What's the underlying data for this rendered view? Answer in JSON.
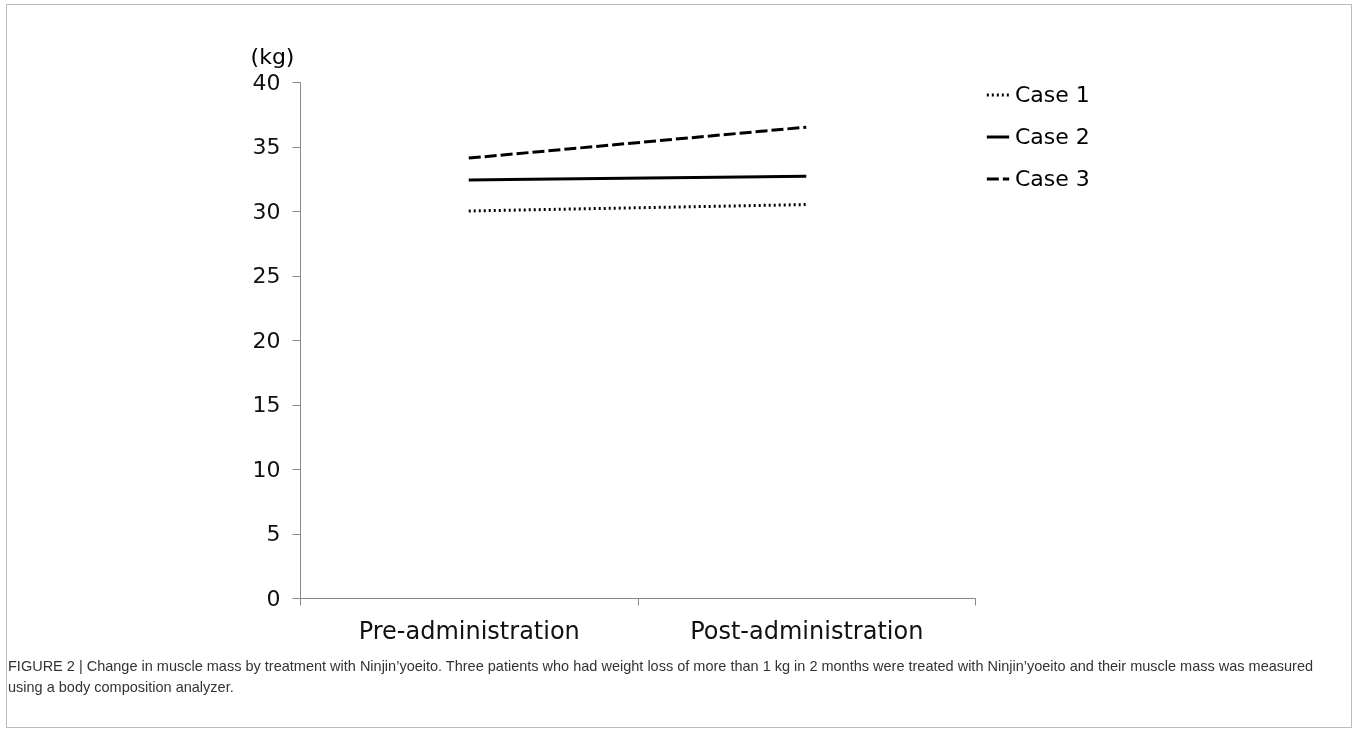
{
  "chart_data": {
    "type": "line",
    "ylabel": "(kg)",
    "categories": [
      "Pre-administration",
      "Post-administration"
    ],
    "series": [
      {
        "name": "Case 1",
        "color": "#000000",
        "line_style": "dotted",
        "values": [
          30.0,
          30.5
        ]
      },
      {
        "name": "Case 2",
        "color": "#000000",
        "line_style": "solid",
        "values": [
          32.4,
          32.7
        ]
      },
      {
        "name": "Case 3",
        "color": "#000000",
        "line_style": "dashed",
        "values": [
          34.1,
          36.5
        ]
      }
    ],
    "ylim": [
      0,
      40
    ],
    "yticks": [
      0,
      5,
      10,
      15,
      20,
      25,
      30,
      35,
      40
    ],
    "grid": false,
    "legend": "right",
    "marker": "none",
    "annotations": [
      "FIGURE 2 | Change in muscle mass by treatment with Ninjin’yoeito. Three patients who had weight loss of more than 1 kg in 2 months were treated with Ninjin’yoeito and their muscle mass was measured using a body composition analyzer."
    ]
  }
}
